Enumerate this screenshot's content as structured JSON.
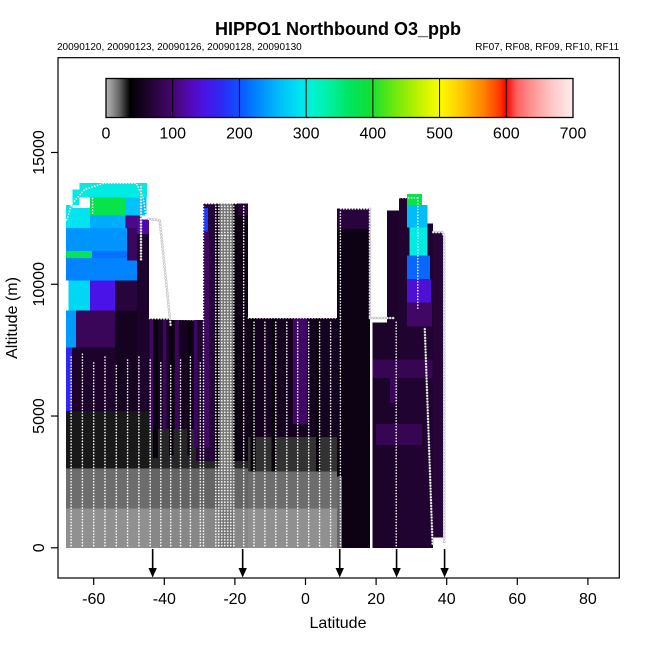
{
  "page": {
    "background": "#ffffff"
  },
  "chart_data": {
    "type": "heatmap",
    "title": "HIPPO1 Northbound O3_ppb",
    "date_labels": "20090120, 20090123, 20090126, 20090128, 20090130",
    "flight_labels": "RF07, RF08, RF09, RF10, RF11",
    "xlabel": "Latitude",
    "ylabel": "Altitude (m)",
    "xticks": [
      -60,
      -40,
      -20,
      0,
      20,
      40,
      60,
      80
    ],
    "yticks": [
      0,
      5000,
      10000,
      15000
    ],
    "xlim": [
      -70,
      89
    ],
    "ylim": [
      -1160,
      18600
    ],
    "grid": false,
    "colorbar": {
      "position": "top",
      "units": "ppb",
      "min": 0,
      "max": 700,
      "ticks": [
        0,
        100,
        200,
        300,
        400,
        500,
        600,
        700
      ],
      "stops": [
        [
          0,
          "#b4b4b4"
        ],
        [
          10,
          "#909090"
        ],
        [
          20,
          "#646464"
        ],
        [
          28,
          "#323232"
        ],
        [
          36,
          "#000000"
        ],
        [
          70,
          "#26043a"
        ],
        [
          100,
          "#45076e"
        ],
        [
          125,
          "#5209b5"
        ],
        [
          150,
          "#4a14e8"
        ],
        [
          175,
          "#2b2bf5"
        ],
        [
          200,
          "#0d53ff"
        ],
        [
          230,
          "#008cff"
        ],
        [
          260,
          "#00bdfa"
        ],
        [
          290,
          "#00e4f2"
        ],
        [
          310,
          "#00f2d2"
        ],
        [
          335,
          "#00f0a0"
        ],
        [
          365,
          "#00e560"
        ],
        [
          395,
          "#10df35"
        ],
        [
          430,
          "#67e80e"
        ],
        [
          465,
          "#b8f000"
        ],
        [
          500,
          "#fdfd00"
        ],
        [
          535,
          "#ffc400"
        ],
        [
          565,
          "#ff8400"
        ],
        [
          590,
          "#ff3800"
        ],
        [
          600,
          "#ff0000"
        ],
        [
          615,
          "#ff5e5e"
        ],
        [
          640,
          "#ff9696"
        ],
        [
          665,
          "#ffc2c2"
        ],
        [
          685,
          "#ffdcdc"
        ],
        [
          700,
          "#ffecec"
        ]
      ]
    },
    "arrows_lat": [
      -43.3,
      -17.8,
      9.7,
      25.8,
      39.4
    ],
    "regions": [
      [
        -67.8,
        -44.3,
        0,
        1500,
        10
      ],
      [
        -67.8,
        -44.3,
        1500,
        3000,
        18
      ],
      [
        -67.8,
        -44.3,
        3000,
        5200,
        32
      ],
      [
        -44.3,
        -16.3,
        0,
        1500,
        12
      ],
      [
        -44.3,
        -16.3,
        1500,
        3000,
        20
      ],
      [
        -44.3,
        -16.3,
        3000,
        4500,
        30
      ],
      [
        -16.3,
        8.9,
        0,
        1500,
        10
      ],
      [
        -16.3,
        8.9,
        1500,
        2900,
        18
      ],
      [
        -16.3,
        8.9,
        2900,
        4200,
        28
      ],
      [
        -67.8,
        -66.2,
        5200,
        7600,
        170
      ],
      [
        -66.2,
        -54,
        5200,
        7600,
        62
      ],
      [
        -54,
        -47.7,
        5200,
        9000,
        55
      ],
      [
        -67.8,
        -65,
        7600,
        9000,
        240
      ],
      [
        -65,
        -54,
        7600,
        9000,
        88
      ],
      [
        -67.2,
        -61,
        9000,
        10150,
        280
      ],
      [
        -61,
        -54,
        9000,
        10150,
        150
      ],
      [
        -54,
        -47.7,
        9000,
        11200,
        72
      ],
      [
        -67.8,
        -47.7,
        10150,
        10990,
        225
      ],
      [
        -67.8,
        -60.5,
        10990,
        11260,
        370
      ],
      [
        -60.5,
        -47.7,
        10990,
        11260,
        215
      ],
      [
        -67.8,
        -50.5,
        11260,
        12130,
        235
      ],
      [
        -50.5,
        -46.5,
        10900,
        12130,
        90
      ],
      [
        -67.8,
        -61,
        12130,
        12900,
        290
      ],
      [
        -61,
        -51,
        12130,
        12600,
        250
      ],
      [
        -51,
        -46.5,
        12130,
        12600,
        110
      ],
      [
        -61,
        -51,
        12600,
        13300,
        380
      ],
      [
        -51,
        -45,
        12600,
        13300,
        265
      ],
      [
        -67.8,
        -66,
        12130,
        13000,
        295
      ],
      [
        -66,
        -64,
        13000,
        13600,
        300
      ],
      [
        -64,
        -44.9,
        13300,
        13840,
        300
      ],
      [
        -47.7,
        -44.3,
        5200,
        12450,
        62
      ],
      [
        -47.7,
        -44.3,
        11900,
        12450,
        120
      ],
      [
        -44.3,
        -38.5,
        4500,
        8700,
        58
      ],
      [
        -38.5,
        -31,
        4500,
        8650,
        55
      ],
      [
        -31,
        -29,
        3300,
        8650,
        65
      ],
      [
        -43.2,
        -41.8,
        3400,
        8700,
        45
      ],
      [
        -38.6,
        -37.4,
        3500,
        8650,
        45
      ],
      [
        -33.4,
        -32.4,
        3500,
        8650,
        45
      ],
      [
        -44.2,
        -43.2,
        4500,
        8700,
        95
      ],
      [
        -40.4,
        -39.4,
        4500,
        8650,
        90
      ],
      [
        -36.9,
        -35.9,
        4500,
        8650,
        88
      ],
      [
        -31.6,
        -30.6,
        3800,
        8650,
        92
      ],
      [
        -29,
        -25.6,
        3300,
        13060,
        68
      ],
      [
        -28.6,
        -27.4,
        3800,
        12000,
        95
      ],
      [
        -29,
        -27.6,
        12000,
        12900,
        185
      ],
      [
        -25.6,
        -19.1,
        8700,
        13060,
        45
      ],
      [
        -25.6,
        -19.1,
        3300,
        8700,
        40
      ],
      [
        -24.3,
        -20.5,
        0,
        13060,
        16
      ],
      [
        -19.1,
        -16.3,
        3300,
        13060,
        48
      ],
      [
        -19.1,
        -16.3,
        12600,
        13060,
        70
      ],
      [
        -16.3,
        8.9,
        4200,
        8720,
        55
      ],
      [
        -15.6,
        -14.2,
        2900,
        8720,
        42
      ],
      [
        -9.6,
        -8.2,
        2900,
        8720,
        42
      ],
      [
        3.0,
        4.2,
        2900,
        8720,
        42
      ],
      [
        -3.5,
        0.4,
        4700,
        8720,
        95
      ],
      [
        8.9,
        18.3,
        0,
        12880,
        48
      ],
      [
        8.9,
        18.3,
        12100,
        12880,
        72
      ],
      [
        8.9,
        10.4,
        0,
        2700,
        20
      ],
      [
        18.9,
        23.1,
        0,
        8550,
        60
      ],
      [
        23.1,
        26.5,
        0,
        12800,
        62
      ],
      [
        26.5,
        31.6,
        0,
        13270,
        65
      ],
      [
        31.6,
        36.1,
        0,
        12300,
        65
      ],
      [
        36.1,
        39.0,
        400,
        11980,
        70
      ],
      [
        19.0,
        36.0,
        6450,
        7150,
        85
      ],
      [
        20.0,
        33.0,
        3900,
        4700,
        85
      ],
      [
        24.0,
        26.0,
        5500,
        6450,
        88
      ],
      [
        28.7,
        33.0,
        13000,
        13420,
        380
      ],
      [
        28.7,
        34.5,
        12150,
        13000,
        260
      ],
      [
        29.5,
        34.5,
        11100,
        12150,
        300
      ],
      [
        28.7,
        35.3,
        10200,
        11100,
        210
      ],
      [
        28.7,
        35.5,
        9300,
        10200,
        140
      ],
      [
        28.7,
        35.8,
        8400,
        9300,
        95
      ]
    ],
    "gaps": [
      [
        18.35,
        18.95,
        -400,
        12880
      ]
    ],
    "track_verticals": [
      [
        -66.4,
        7300
      ],
      [
        -63.2,
        7350
      ],
      [
        -60.0,
        7100
      ],
      [
        -56.8,
        7250
      ],
      [
        -53.6,
        7000
      ],
      [
        -50.4,
        7150
      ],
      [
        -47.2,
        7300
      ],
      [
        -44.0,
        7200
      ],
      [
        -41.0,
        7100
      ],
      [
        -38.2,
        7000
      ],
      [
        -35.4,
        7150
      ],
      [
        -32.6,
        7250
      ],
      [
        -29.8,
        7100
      ],
      [
        -28.9,
        13050
      ],
      [
        -25.4,
        13050
      ],
      [
        -24.55,
        13050
      ],
      [
        -23.7,
        13050
      ],
      [
        -22.85,
        13050
      ],
      [
        -22.0,
        13050
      ],
      [
        -21.15,
        13050
      ],
      [
        -20.3,
        13050
      ],
      [
        -17.5,
        13050
      ],
      [
        -14.6,
        8650
      ],
      [
        -11.5,
        8650
      ],
      [
        -8.4,
        8650
      ],
      [
        -5.3,
        8650
      ],
      [
        -2.2,
        8650
      ],
      [
        0.9,
        8650
      ],
      [
        4.0,
        8650
      ],
      [
        7.1,
        8650
      ],
      [
        9.9,
        12830
      ],
      [
        25.7,
        8600
      ]
    ],
    "track_lines": [
      {
        "halo": false,
        "pts": [
          [
            -67.6,
            12450
          ],
          [
            -66.2,
            13050
          ],
          [
            -64.2,
            13350
          ],
          [
            -62.5,
            13600
          ],
          [
            -57,
            13840
          ],
          [
            -48,
            13840
          ],
          [
            -46,
            13300
          ],
          [
            -45.2,
            12600
          ],
          [
            -44.4,
            12480
          ]
        ]
      },
      {
        "halo": false,
        "pts": [
          [
            -60.3,
            12700
          ],
          [
            -60.3,
            13350
          ]
        ]
      },
      {
        "halo": true,
        "pts": [
          [
            -46.6,
            13700
          ],
          [
            -46.6,
            10900
          ]
        ]
      },
      {
        "halo": true,
        "pts": [
          [
            -44.4,
            12480
          ],
          [
            -41.3,
            12430
          ],
          [
            -38.2,
            8420
          ]
        ]
      },
      {
        "halo": false,
        "pts": [
          [
            -25.5,
            13060
          ],
          [
            -19.2,
            13060
          ]
        ]
      },
      {
        "halo": false,
        "pts": [
          [
            -24.4,
            11850
          ],
          [
            -20.5,
            11850
          ]
        ]
      },
      {
        "halo": false,
        "pts": [
          [
            -28.95,
            13060
          ],
          [
            -25.6,
            13060
          ]
        ]
      },
      {
        "halo": false,
        "pts": [
          [
            -16.2,
            8720
          ],
          [
            8.8,
            8720
          ]
        ]
      },
      {
        "halo": false,
        "pts": [
          [
            10.0,
            12860
          ],
          [
            18.2,
            12860
          ]
        ]
      },
      {
        "halo": true,
        "pts": [
          [
            18.25,
            12860
          ],
          [
            18.25,
            8720
          ]
        ]
      },
      {
        "halo": true,
        "pts": [
          [
            18.25,
            8720
          ],
          [
            25.5,
            8720
          ]
        ]
      },
      {
        "halo": false,
        "pts": [
          [
            26.7,
            13280
          ],
          [
            31.7,
            13280
          ]
        ]
      },
      {
        "halo": false,
        "pts": [
          [
            31.8,
            13280
          ],
          [
            31.8,
            9000
          ]
        ]
      },
      {
        "halo": true,
        "pts": [
          [
            33.8,
            8300
          ],
          [
            36.0,
            100
          ]
        ]
      },
      {
        "halo": true,
        "pts": [
          [
            36.2,
            11980
          ],
          [
            38.8,
            11980
          ],
          [
            39.3,
            11800
          ],
          [
            39.3,
            200
          ]
        ]
      },
      {
        "halo": false,
        "pts": [
          [
            -44.2,
            8700
          ],
          [
            -31.2,
            8650
          ]
        ]
      }
    ]
  }
}
